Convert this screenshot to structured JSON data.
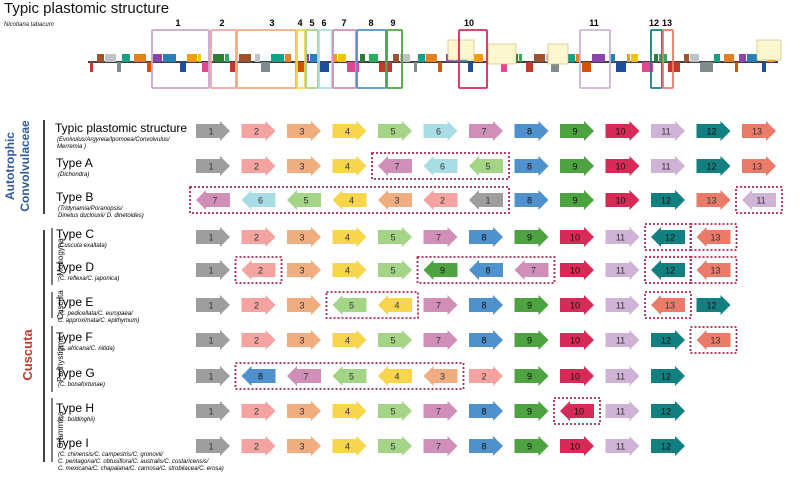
{
  "title": "Typic plastomic structure",
  "species": "Nicotiana tabacum",
  "region_labels": [
    "1",
    "2",
    "3",
    "4",
    "5",
    "6",
    "7",
    "8",
    "9",
    "10",
    "11",
    "12",
    "13"
  ],
  "block_colors": {
    "1": "#9e9e9e",
    "2": "#f4a3a0",
    "3": "#f0ad80",
    "4": "#f7d54c",
    "5": "#a4d486",
    "6": "#a8dde6",
    "7": "#cf8fb6",
    "8": "#4f91cc",
    "9": "#4da33f",
    "10": "#d62b56",
    "11": "#cfb3d6",
    "12": "#128080",
    "13": "#ec7a68"
  },
  "families": {
    "autotrophic": "Autotrophic Convolvulaceae",
    "cuscuta": "Cuscuta"
  },
  "subgenera": {
    "monogyna": "Monogyna",
    "cuscuta": "Cuscuta",
    "pachystigma": "Pachystigma",
    "grammica": "Grammica"
  },
  "rows": [
    {
      "name": "Typic plastomic structure",
      "sub": "(Evolvulus/Argyreia/Ipomoea/Convolvulus/",
      "sub2": "Merremia )",
      "blocks": [
        [
          "1",
          0
        ],
        [
          "2",
          0
        ],
        [
          "3",
          0
        ],
        [
          "4",
          0
        ],
        [
          "5",
          0
        ],
        [
          "6",
          0
        ],
        [
          "7",
          0
        ],
        [
          "8",
          0
        ],
        [
          "9",
          0
        ],
        [
          "10",
          0
        ],
        [
          "11",
          0
        ],
        [
          "12",
          0
        ],
        [
          "13",
          0
        ]
      ],
      "boxes": []
    },
    {
      "name": "Type A",
      "sub": "(Dichondra)",
      "blocks": [
        [
          "1",
          0
        ],
        [
          "2",
          0
        ],
        [
          "3",
          0
        ],
        [
          "4",
          0
        ],
        [
          "7",
          1
        ],
        [
          "6",
          1
        ],
        [
          "5",
          1
        ],
        [
          "8",
          0
        ],
        [
          "9",
          0
        ],
        [
          "10",
          0
        ],
        [
          "11",
          0
        ],
        [
          "12",
          0
        ],
        [
          "13",
          0
        ]
      ],
      "boxes": [
        [
          4,
          6
        ]
      ]
    },
    {
      "name": "Type B",
      "sub": "(Tridynamia/Poranopsis/",
      "sub2": "Dinetus duclouxii/ D. dinetoides)",
      "blocks": [
        [
          "7",
          1
        ],
        [
          "6",
          1
        ],
        [
          "5",
          1
        ],
        [
          "4",
          1
        ],
        [
          "3",
          1
        ],
        [
          "2",
          1
        ],
        [
          "1",
          1
        ],
        [
          "8",
          0
        ],
        [
          "9",
          0
        ],
        [
          "10",
          0
        ],
        [
          "12",
          0
        ],
        [
          "13",
          0
        ],
        [
          "11",
          1
        ]
      ],
      "boxes": [
        [
          0,
          6
        ],
        [
          12,
          12
        ]
      ]
    },
    {
      "name": "Type C",
      "sub": "(Cuscuta exaltata)",
      "blocks": [
        [
          "1",
          0
        ],
        [
          "2",
          0
        ],
        [
          "3",
          0
        ],
        [
          "4",
          0
        ],
        [
          "5",
          0
        ],
        [
          "7",
          0
        ],
        [
          "8",
          0
        ],
        [
          "9",
          0
        ],
        [
          "10",
          0
        ],
        [
          "11",
          0
        ],
        [
          "12",
          1
        ],
        [
          "13",
          1
        ]
      ],
      "boxes": [
        [
          10,
          10
        ],
        [
          11,
          11
        ]
      ]
    },
    {
      "name": "Type D",
      "sub": "(C. reflexa/C. japonica)",
      "blocks": [
        [
          "1",
          0
        ],
        [
          "2",
          1
        ],
        [
          "3",
          0
        ],
        [
          "4",
          0
        ],
        [
          "5",
          0
        ],
        [
          "9",
          1
        ],
        [
          "8",
          1
        ],
        [
          "7",
          1
        ],
        [
          "10",
          0
        ],
        [
          "11",
          0
        ],
        [
          "12",
          1
        ],
        [
          "13",
          1
        ]
      ],
      "boxes": [
        [
          1,
          1
        ],
        [
          5,
          7
        ],
        [
          10,
          10
        ],
        [
          11,
          11
        ]
      ]
    },
    {
      "name": "Type E",
      "sub": "(C. pedicellata/C. europaea/",
      "sub2": "C. approximata/C. epithymum)",
      "blocks": [
        [
          "1",
          0
        ],
        [
          "2",
          0
        ],
        [
          "3",
          0
        ],
        [
          "5",
          1
        ],
        [
          "4",
          1
        ],
        [
          "7",
          0
        ],
        [
          "8",
          0
        ],
        [
          "9",
          0
        ],
        [
          "10",
          0
        ],
        [
          "11",
          0
        ],
        [
          "13",
          1
        ],
        [
          "12",
          0
        ]
      ],
      "boxes": [
        [
          3,
          4
        ],
        [
          10,
          10
        ]
      ]
    },
    {
      "name": "Type F",
      "sub": "(C. africana/C. nitida)",
      "blocks": [
        [
          "1",
          0
        ],
        [
          "2",
          0
        ],
        [
          "3",
          0
        ],
        [
          "4",
          0
        ],
        [
          "5",
          0
        ],
        [
          "7",
          0
        ],
        [
          "8",
          0
        ],
        [
          "9",
          0
        ],
        [
          "10",
          0
        ],
        [
          "11",
          0
        ],
        [
          "12",
          0
        ],
        [
          "13",
          1
        ]
      ],
      "boxes": [
        [
          11,
          11
        ]
      ]
    },
    {
      "name": "Type G",
      "sub": "(C. bonafortunae)",
      "blocks": [
        [
          "1",
          0
        ],
        [
          "8",
          1
        ],
        [
          "7",
          1
        ],
        [
          "5",
          1
        ],
        [
          "4",
          1
        ],
        [
          "3",
          1
        ],
        [
          "2",
          0
        ],
        [
          "9",
          0
        ],
        [
          "10",
          0
        ],
        [
          "11",
          0
        ],
        [
          "12",
          0
        ]
      ],
      "boxes": [
        [
          1,
          5
        ]
      ]
    },
    {
      "name": "Type H",
      "sub": "(C. boldinghii)",
      "blocks": [
        [
          "1",
          0
        ],
        [
          "2",
          0
        ],
        [
          "3",
          0
        ],
        [
          "4",
          0
        ],
        [
          "5",
          0
        ],
        [
          "7",
          0
        ],
        [
          "8",
          0
        ],
        [
          "9",
          0
        ],
        [
          "10",
          1
        ],
        [
          "11",
          0
        ],
        [
          "12",
          0
        ]
      ],
      "boxes": [
        [
          8,
          8
        ]
      ]
    },
    {
      "name": "Type I",
      "sub": "(C. chinensis/C. campestris/C. gronovii/",
      "sub2": "C. pentagona/C. obtusiflora/C. australis/C. costaricensis/",
      "sub3": "C. mexicana/C. chapalana/C. carnosa/C. strobilacea/C. erosa)",
      "blocks": [
        [
          "1",
          0
        ],
        [
          "2",
          0
        ],
        [
          "3",
          0
        ],
        [
          "4",
          0
        ],
        [
          "5",
          0
        ],
        [
          "7",
          0
        ],
        [
          "8",
          0
        ],
        [
          "9",
          0
        ],
        [
          "10",
          0
        ],
        [
          "11",
          0
        ],
        [
          "12",
          0
        ]
      ],
      "boxes": []
    }
  ]
}
